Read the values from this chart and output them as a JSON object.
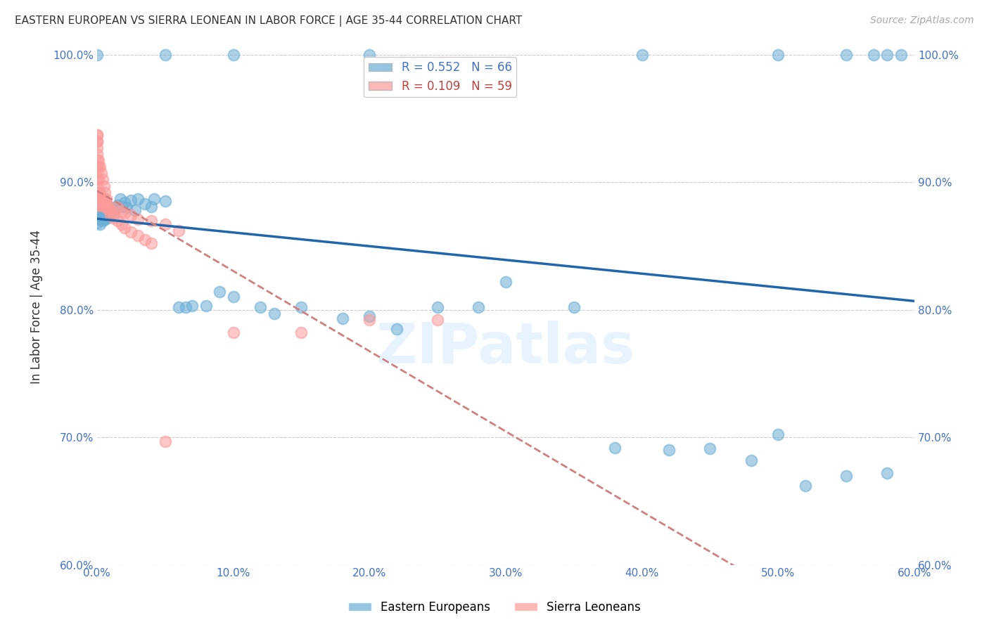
{
  "title": "EASTERN EUROPEAN VS SIERRA LEONEAN IN LABOR FORCE | AGE 35-44 CORRELATION CHART",
  "source": "Source: ZipAtlas.com",
  "ylabel": "In Labor Force | Age 35-44",
  "xlim": [
    0.0,
    0.6
  ],
  "ylim": [
    0.6,
    1.005
  ],
  "yticks": [
    0.6,
    0.7,
    0.8,
    0.9,
    1.0
  ],
  "xticks": [
    0.0,
    0.1,
    0.2,
    0.3,
    0.4,
    0.5,
    0.6
  ],
  "blue_R": 0.552,
  "blue_N": 66,
  "pink_R": 0.109,
  "pink_N": 59,
  "blue_color": "#6baed6",
  "pink_color": "#fb9a99",
  "blue_line_color": "#2166ac",
  "pink_line_color": "#d08080",
  "blue_scatter_x": [
    0.0,
    0.0,
    0.0,
    0.0,
    0.001,
    0.001,
    0.002,
    0.002,
    0.003,
    0.003,
    0.004,
    0.005,
    0.005,
    0.006,
    0.007,
    0.008,
    0.009,
    0.01,
    0.01,
    0.012,
    0.015,
    0.017,
    0.018,
    0.02,
    0.022,
    0.025,
    0.028,
    0.03,
    0.035,
    0.04,
    0.042,
    0.05,
    0.06,
    0.065,
    0.07,
    0.08,
    0.09,
    0.1,
    0.12,
    0.13,
    0.15,
    0.18,
    0.2,
    0.22,
    0.25,
    0.28,
    0.3,
    0.35,
    0.38,
    0.42,
    0.45,
    0.48,
    0.5,
    0.52,
    0.55,
    0.58,
    0.0,
    0.05,
    0.1,
    0.2,
    0.4,
    0.5,
    0.55,
    0.57,
    0.58,
    0.59
  ],
  "blue_scatter_y": [
    0.873,
    0.877,
    0.882,
    0.868,
    0.871,
    0.876,
    0.867,
    0.872,
    0.874,
    0.878,
    0.87,
    0.873,
    0.876,
    0.871,
    0.873,
    0.872,
    0.874,
    0.877,
    0.88,
    0.875,
    0.882,
    0.887,
    0.881,
    0.884,
    0.88,
    0.886,
    0.878,
    0.887,
    0.883,
    0.881,
    0.887,
    0.885,
    0.802,
    0.802,
    0.803,
    0.803,
    0.814,
    0.81,
    0.802,
    0.797,
    0.802,
    0.793,
    0.795,
    0.785,
    0.802,
    0.802,
    0.822,
    0.802,
    0.692,
    0.69,
    0.691,
    0.682,
    0.702,
    0.662,
    0.67,
    0.672,
    1.0,
    1.0,
    1.0,
    1.0,
    1.0,
    1.0,
    1.0,
    1.0,
    1.0,
    1.0
  ],
  "pink_scatter_x": [
    0.0,
    0.0,
    0.0,
    0.0,
    0.0,
    0.0,
    0.0,
    0.0,
    0.0,
    0.0,
    0.0,
    0.0,
    0.001,
    0.001,
    0.001,
    0.002,
    0.002,
    0.003,
    0.004,
    0.005,
    0.006,
    0.007,
    0.008,
    0.01,
    0.012,
    0.015,
    0.018,
    0.02,
    0.025,
    0.03,
    0.04,
    0.05,
    0.06,
    0.1,
    0.15,
    0.2,
    0.25,
    0.0,
    0.0,
    0.001,
    0.001,
    0.002,
    0.003,
    0.004,
    0.005,
    0.006,
    0.007,
    0.008,
    0.009,
    0.01,
    0.012,
    0.015,
    0.018,
    0.02,
    0.025,
    0.03,
    0.035,
    0.04,
    0.05
  ],
  "pink_scatter_y": [
    0.882,
    0.887,
    0.892,
    0.897,
    0.902,
    0.907,
    0.912,
    0.917,
    0.922,
    0.927,
    0.932,
    0.937,
    0.882,
    0.892,
    0.902,
    0.882,
    0.892,
    0.887,
    0.882,
    0.887,
    0.884,
    0.88,
    0.881,
    0.878,
    0.877,
    0.88,
    0.877,
    0.876,
    0.874,
    0.871,
    0.87,
    0.867,
    0.862,
    0.782,
    0.782,
    0.792,
    0.792,
    0.932,
    0.937,
    0.912,
    0.917,
    0.912,
    0.907,
    0.902,
    0.897,
    0.892,
    0.887,
    0.882,
    0.878,
    0.874,
    0.872,
    0.87,
    0.867,
    0.864,
    0.861,
    0.858,
    0.855,
    0.852,
    0.697
  ]
}
